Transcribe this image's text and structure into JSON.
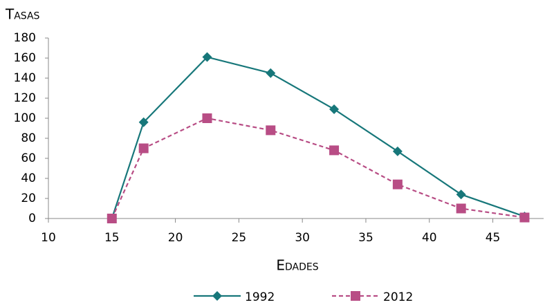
{
  "chart_data": {
    "type": "line",
    "ylabel": "Tasas",
    "xlabel": "Edades",
    "x": [
      15,
      17.5,
      22.5,
      27.5,
      32.5,
      37.5,
      42.5,
      47.5
    ],
    "series": [
      {
        "name": "1992",
        "color": "#17777a",
        "marker": "diamond",
        "linestyle": "solid",
        "values": [
          0,
          96,
          161,
          145,
          109,
          67,
          24,
          2
        ]
      },
      {
        "name": "2012",
        "color": "#b84d85",
        "marker": "square",
        "linestyle": "dashed",
        "values": [
          0,
          70,
          100,
          88,
          68,
          34,
          10,
          1
        ]
      }
    ],
    "xlim": [
      10,
      49
    ],
    "xticks": [
      10,
      15,
      20,
      25,
      30,
      35,
      40,
      45
    ],
    "ylim": [
      0,
      180
    ],
    "yticks": [
      0,
      20,
      40,
      60,
      80,
      100,
      120,
      140,
      160,
      180
    ],
    "grid": false,
    "legend": "bottom"
  }
}
